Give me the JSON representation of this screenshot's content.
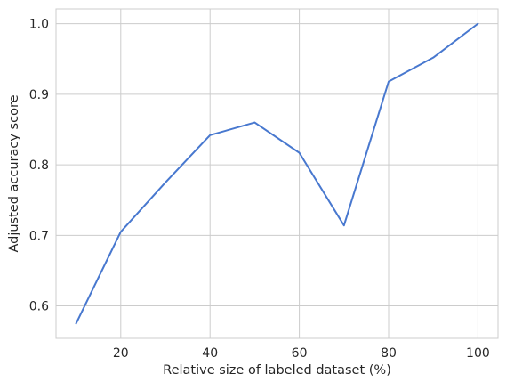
{
  "chart_data": {
    "type": "line",
    "title": "",
    "xlabel": "Relative size of labeled dataset (%)",
    "ylabel": "Adjusted accuracy score",
    "x_ticks": [
      "20",
      "40",
      "60",
      "80",
      "100"
    ],
    "y_ticks": [
      "0.6",
      "0.7",
      "0.8",
      "0.9",
      "1.0"
    ],
    "xlim": [
      5.5,
      104.5
    ],
    "ylim": [
      0.554,
      1.021
    ],
    "grid": true,
    "legend": "none",
    "series": [
      {
        "color": "#4878cf",
        "x": [
          10,
          20,
          30,
          40,
          50,
          60,
          70,
          80,
          90,
          100
        ],
        "y": [
          0.575,
          0.705,
          0.775,
          0.842,
          0.86,
          0.817,
          0.714,
          0.918,
          0.952,
          1.0
        ]
      }
    ]
  }
}
